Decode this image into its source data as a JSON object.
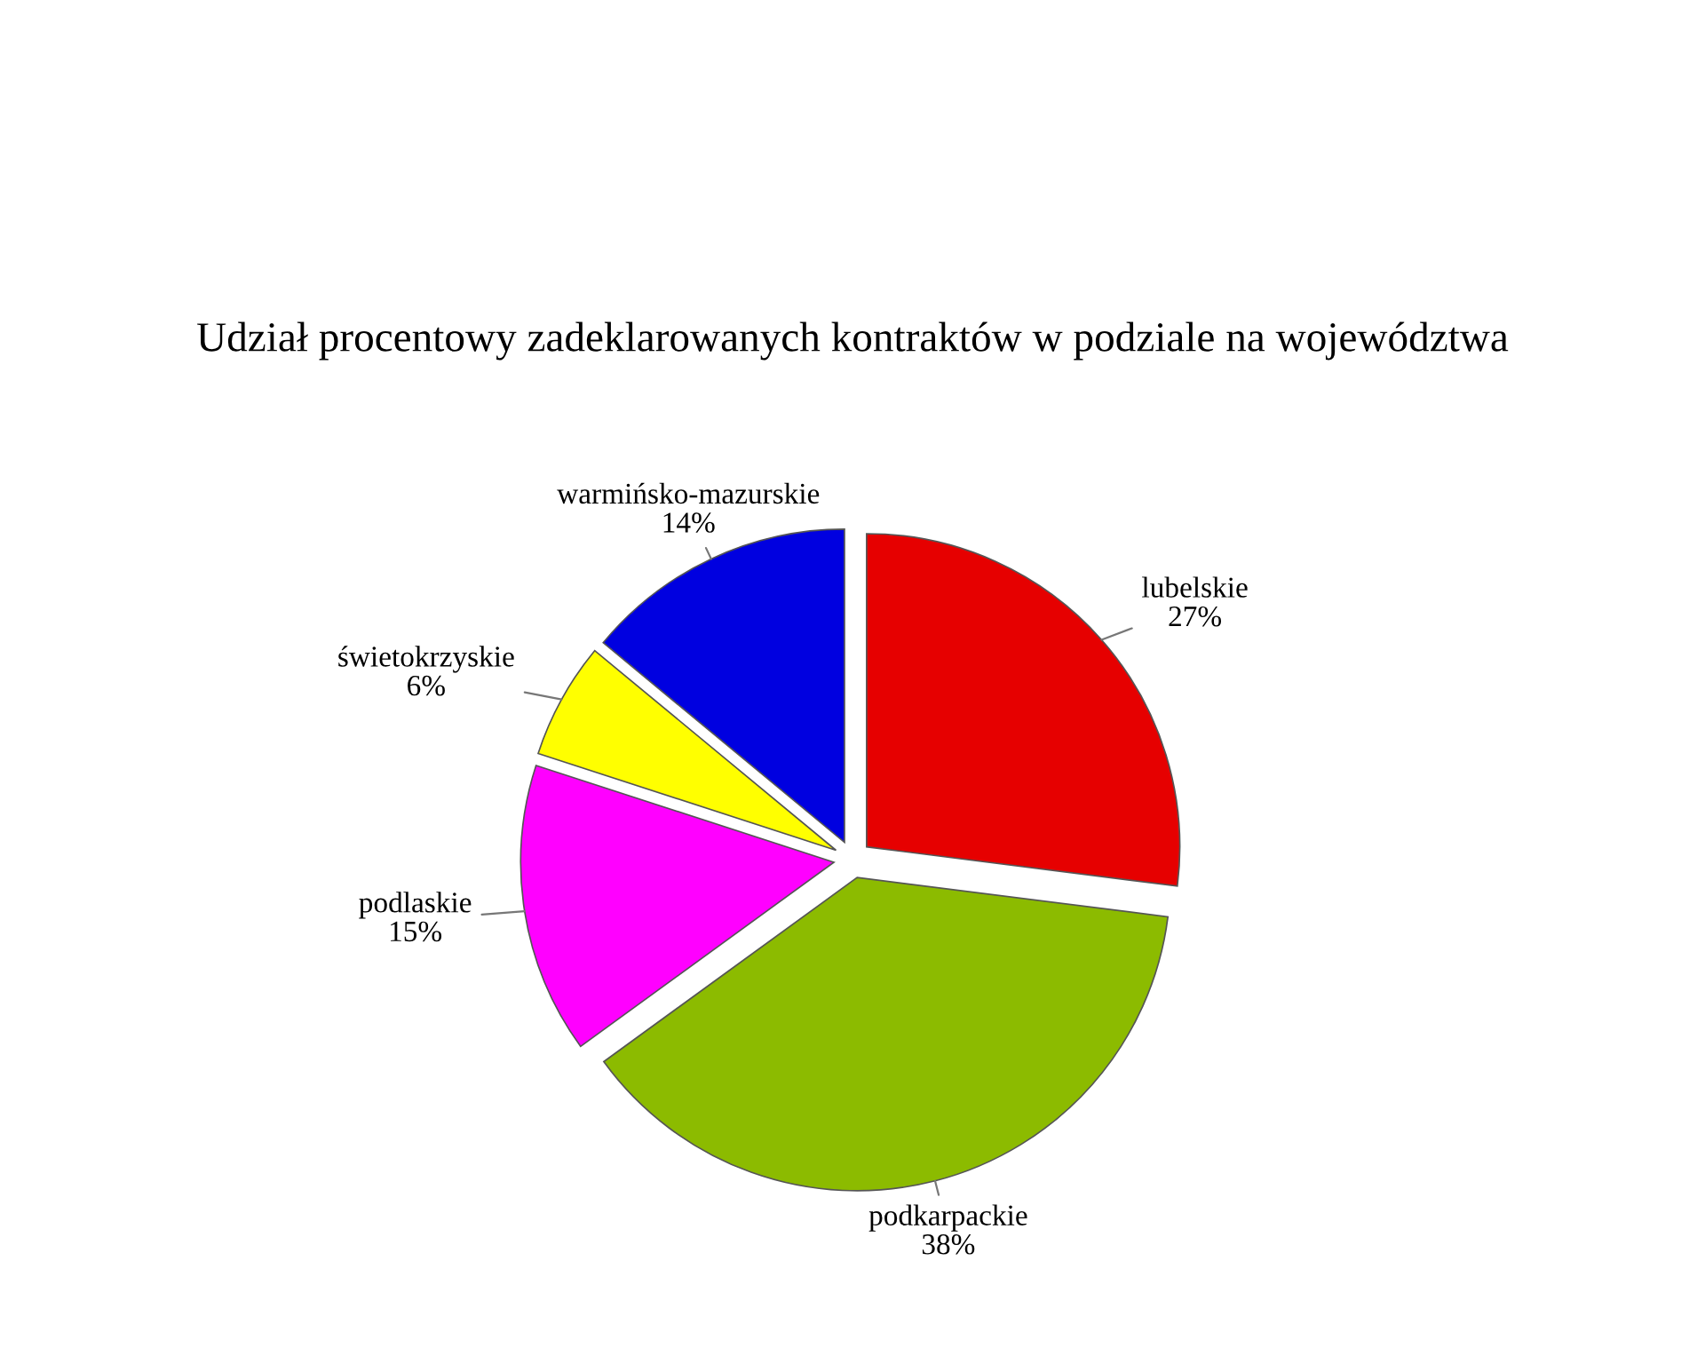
{
  "chart_data": {
    "type": "pie",
    "title": "Udział procentowy zadeklarowanych kontraktów w podziale na województwa",
    "categories": [
      "lubelskie",
      "podkarpackie",
      "podlaskie",
      "świetokrzyskie",
      "warmińsko-mazurskie"
    ],
    "values": [
      27,
      38,
      15,
      6,
      14
    ],
    "value_labels": [
      "27%",
      "38%",
      "15%",
      "6%",
      "14%"
    ],
    "colors": [
      "#e60000",
      "#8cbb00",
      "#ff00ff",
      "#ffff00",
      "#0000e0"
    ]
  }
}
